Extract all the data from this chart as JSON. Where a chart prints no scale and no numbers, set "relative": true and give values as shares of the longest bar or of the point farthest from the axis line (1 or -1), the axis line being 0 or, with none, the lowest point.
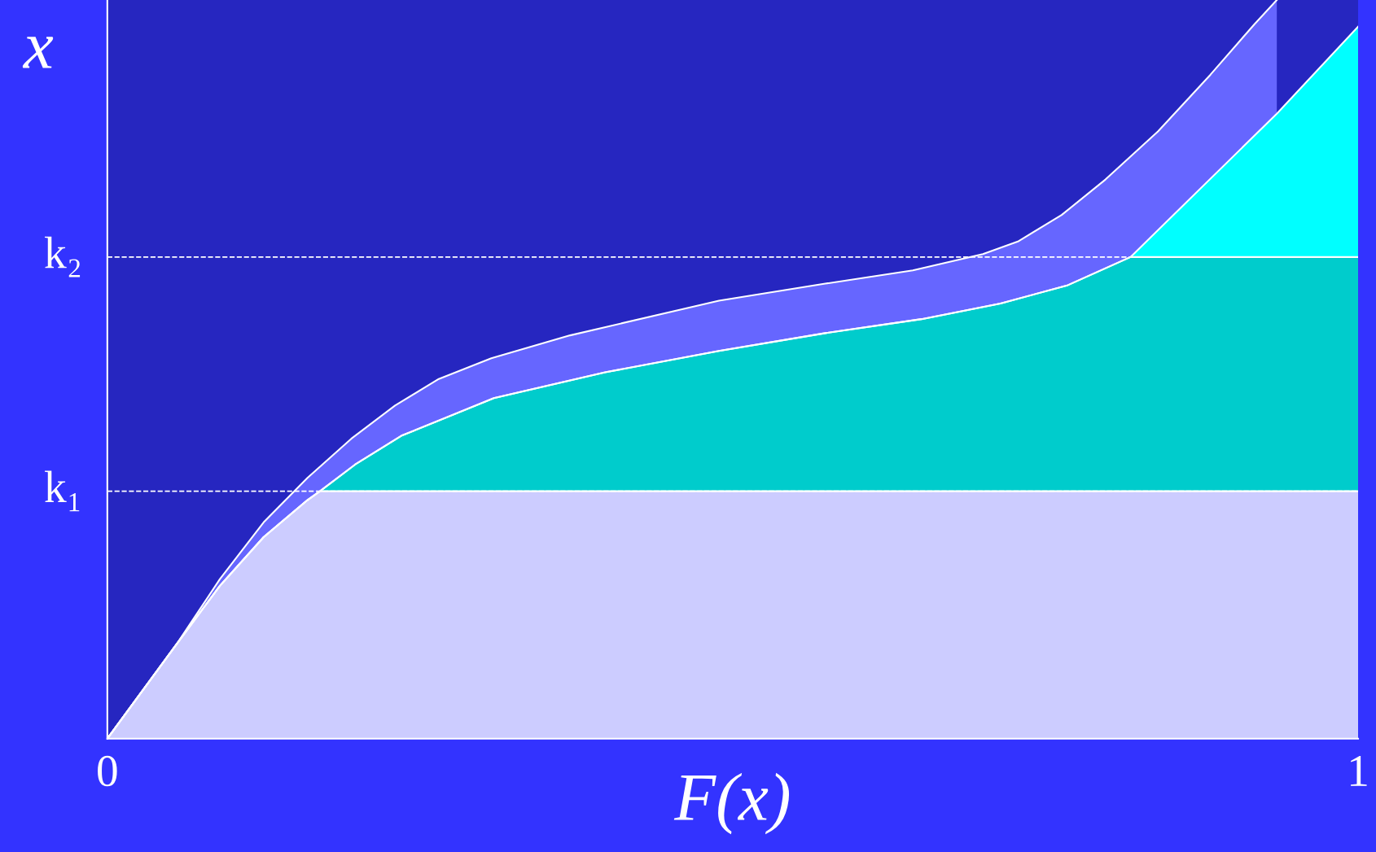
{
  "chart_data": {
    "type": "area",
    "relative": true,
    "xlabel": "F(x)",
    "ylabel": "x",
    "xlim": [
      0,
      1
    ],
    "xticks": [
      0,
      1
    ],
    "grid": false,
    "series": [
      {
        "color": "#6666ff",
        "x": [
          0,
          0.055,
          0.09,
          0.125,
          0.16,
          0.195,
          0.23,
          0.265,
          0.307,
          0.37,
          0.461,
          0.489,
          0.574,
          0.644,
          0.7,
          0.728,
          0.763,
          0.798,
          0.84,
          0.882,
          0.917,
          0.935
        ],
        "values": [
          0,
          0.127,
          0.216,
          0.293,
          0.353,
          0.406,
          0.451,
          0.487,
          0.515,
          0.546,
          0.582,
          0.593,
          0.616,
          0.634,
          0.656,
          0.673,
          0.709,
          0.757,
          0.822,
          0.899,
          0.967,
          1
        ]
      },
      {
        "color": "#00ffff",
        "x": [
          0,
          0.055,
          0.09,
          0.125,
          0.16,
          0.17,
          0.198,
          0.235,
          0.309,
          0.398,
          0.489,
          0.574,
          0.651,
          0.714,
          0.768,
          0.818,
          0.935,
          1
        ],
        "values": [
          0,
          0.127,
          0.207,
          0.273,
          0.323,
          0.335,
          0.371,
          0.41,
          0.461,
          0.496,
          0.525,
          0.549,
          0.568,
          0.589,
          0.614,
          0.652,
          0.846,
          0.964
        ]
      },
      {
        "color": "#00cccc",
        "x": [
          0,
          0.055,
          0.09,
          0.125,
          0.16,
          0.17,
          0.198,
          0.235,
          0.309,
          0.398,
          0.489,
          0.574,
          0.651,
          0.714,
          0.768,
          0.818,
          1
        ],
        "values": [
          0,
          0.127,
          0.207,
          0.273,
          0.323,
          0.335,
          0.371,
          0.41,
          0.461,
          0.496,
          0.525,
          0.549,
          0.568,
          0.589,
          0.614,
          0.652,
          0.652
        ]
      },
      {
        "color": "#ccccff",
        "x": [
          0,
          0.055,
          0.09,
          0.125,
          0.16,
          0.17,
          1
        ],
        "values": [
          0,
          0.127,
          0.207,
          0.273,
          0.323,
          0.335,
          0.335
        ]
      }
    ],
    "ref_lines": [
      {
        "axis": "y",
        "value": 0.335,
        "label": "k₁",
        "color": "#ffffff",
        "line_style": "dashed"
      },
      {
        "axis": "y",
        "value": 0.652,
        "label": "k₂",
        "color": "#ffffff",
        "line_style": "dashed"
      }
    ]
  }
}
